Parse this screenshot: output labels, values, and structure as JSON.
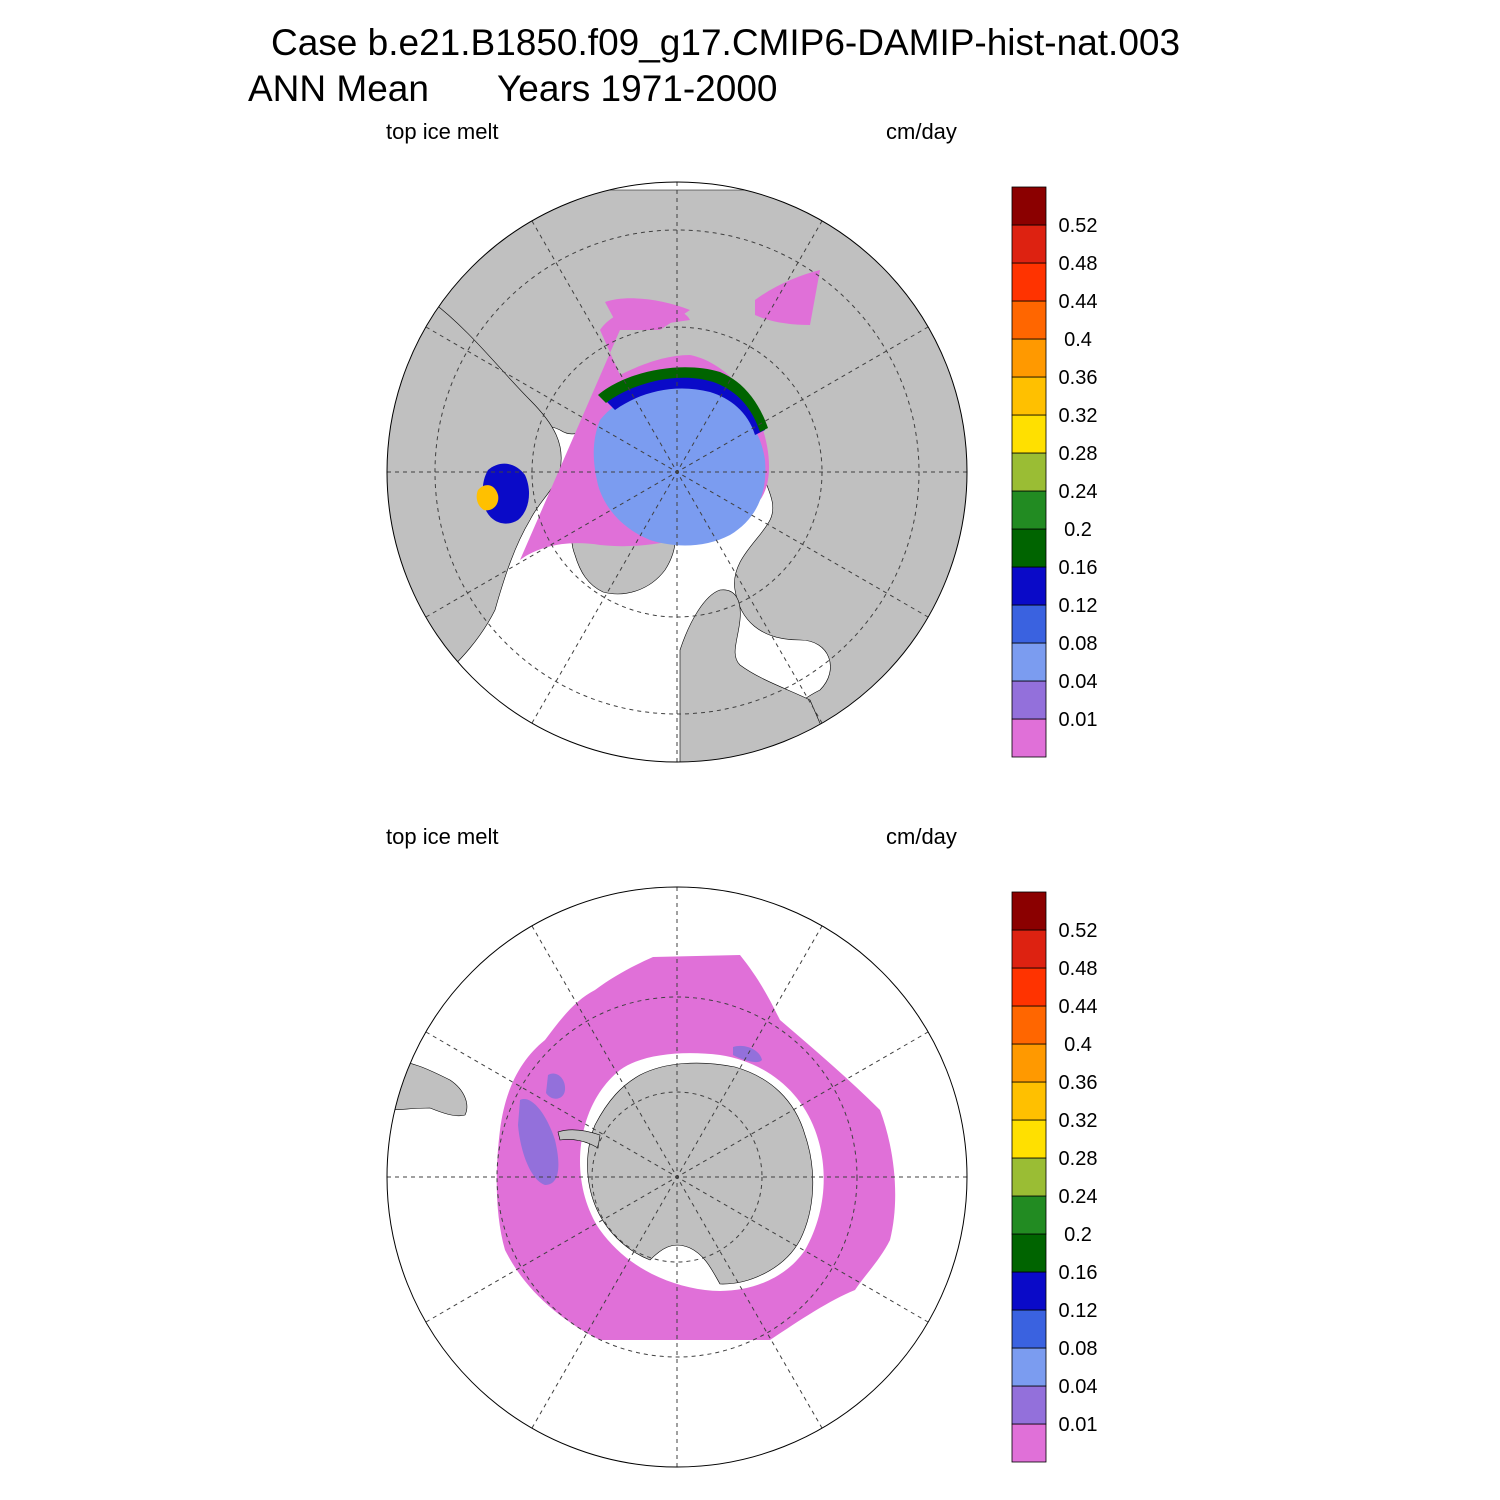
{
  "title": {
    "case": "Case b.e21.B1850.f09_g17.CMIP6-DAMIP-hist-nat.003",
    "season": "ANN Mean",
    "years": "Years 1971-2000"
  },
  "panels": [
    {
      "id": "north",
      "hemisphere": "Northern Hemisphere",
      "variable_label": "top ice melt",
      "units_label": "cm/day",
      "land_color": "#c0c0c0"
    },
    {
      "id": "south",
      "hemisphere": "Southern Hemisphere",
      "variable_label": "top ice melt",
      "units_label": "cm/day",
      "land_color": "#c0c0c0"
    }
  ],
  "colorbar": {
    "levels": [
      "0.01",
      "0.04",
      "0.08",
      "0.12",
      "0.16",
      "0.2",
      "0.24",
      "0.28",
      "0.32",
      "0.36",
      "0.4",
      "0.44",
      "0.48",
      "0.52"
    ],
    "colors": [
      "#e070d8",
      "#9370db",
      "#7b9cf0",
      "#3a62e0",
      "#0a0ac8",
      "#006400",
      "#228b22",
      "#9abd34",
      "#ffe000",
      "#ffc000",
      "#ff9900",
      "#ff6600",
      "#ff3300",
      "#dd2211",
      "#8b0000"
    ]
  }
}
